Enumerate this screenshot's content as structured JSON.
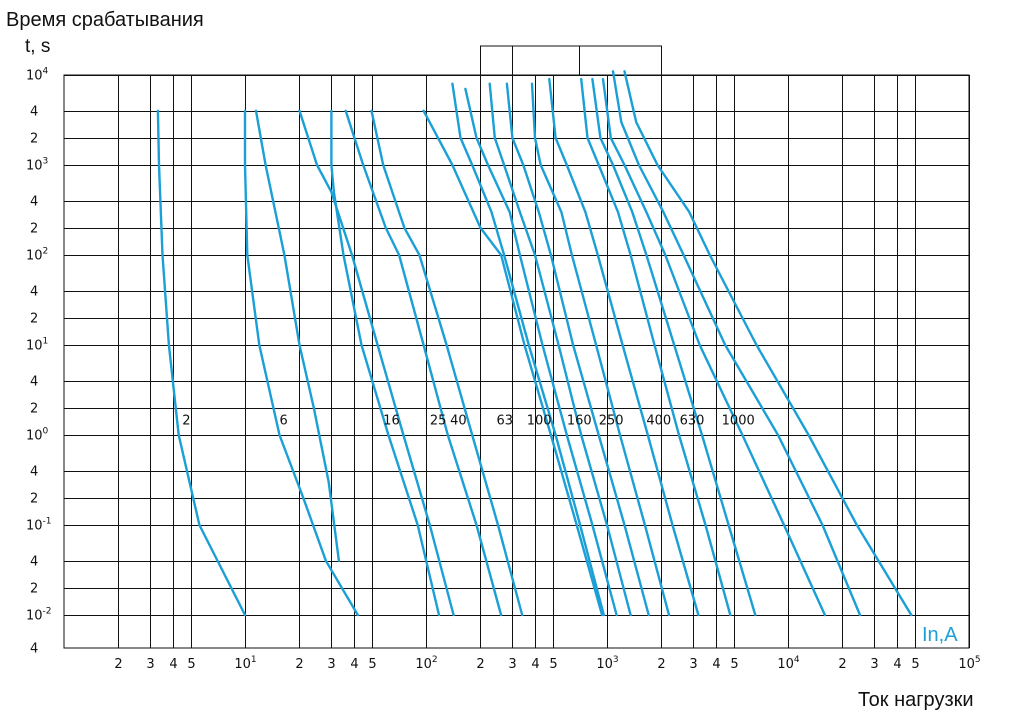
{
  "chart_data": {
    "type": "line",
    "title": "Время срабатывания",
    "ylabel": "t, s",
    "xlabel": "Ток нагрузки",
    "series_unit_label": "In,A",
    "x_scale": "log",
    "y_scale": "log",
    "xlim": [
      1,
      100000
    ],
    "ylim": [
      0.004,
      10000
    ],
    "grid": true,
    "curve_color": "#1a9fd6",
    "x_ticks": [
      {
        "value": 2,
        "base": "2",
        "exp": ""
      },
      {
        "value": 3,
        "base": "3",
        "exp": ""
      },
      {
        "value": 4,
        "base": "4",
        "exp": ""
      },
      {
        "value": 5,
        "base": "5",
        "exp": ""
      },
      {
        "value": 10,
        "base": "10",
        "exp": "1"
      },
      {
        "value": 20,
        "base": "2",
        "exp": ""
      },
      {
        "value": 30,
        "base": "3",
        "exp": ""
      },
      {
        "value": 40,
        "base": "4",
        "exp": ""
      },
      {
        "value": 50,
        "base": "5",
        "exp": ""
      },
      {
        "value": 100,
        "base": "10",
        "exp": "2"
      },
      {
        "value": 200,
        "base": "2",
        "exp": ""
      },
      {
        "value": 300,
        "base": "3",
        "exp": ""
      },
      {
        "value": 400,
        "base": "4",
        "exp": ""
      },
      {
        "value": 500,
        "base": "5",
        "exp": ""
      },
      {
        "value": 1000,
        "base": "10",
        "exp": "3"
      },
      {
        "value": 2000,
        "base": "2",
        "exp": ""
      },
      {
        "value": 3000,
        "base": "3",
        "exp": ""
      },
      {
        "value": 4000,
        "base": "4",
        "exp": ""
      },
      {
        "value": 5000,
        "base": "5",
        "exp": ""
      },
      {
        "value": 10000,
        "base": "10",
        "exp": "4"
      },
      {
        "value": 20000,
        "base": "2",
        "exp": ""
      },
      {
        "value": 30000,
        "base": "3",
        "exp": ""
      },
      {
        "value": 40000,
        "base": "4",
        "exp": ""
      },
      {
        "value": 50000,
        "base": "5",
        "exp": ""
      },
      {
        "value": 100000,
        "base": "10",
        "exp": "5"
      }
    ],
    "y_ticks": [
      {
        "value": 10000,
        "base": "10",
        "exp": "4"
      },
      {
        "value": 4000,
        "base": "4",
        "exp": ""
      },
      {
        "value": 2000,
        "base": "2",
        "exp": ""
      },
      {
        "value": 1000,
        "base": "10",
        "exp": "3"
      },
      {
        "value": 400,
        "base": "4",
        "exp": ""
      },
      {
        "value": 200,
        "base": "2",
        "exp": ""
      },
      {
        "value": 100,
        "base": "10",
        "exp": "2"
      },
      {
        "value": 40,
        "base": "4",
        "exp": ""
      },
      {
        "value": 20,
        "base": "2",
        "exp": ""
      },
      {
        "value": 10,
        "base": "10",
        "exp": "1"
      },
      {
        "value": 4,
        "base": "4",
        "exp": ""
      },
      {
        "value": 2,
        "base": "2",
        "exp": ""
      },
      {
        "value": 1,
        "base": "10",
        "exp": "0"
      },
      {
        "value": 0.4,
        "base": "4",
        "exp": ""
      },
      {
        "value": 0.2,
        "base": "2",
        "exp": ""
      },
      {
        "value": 0.1,
        "base": "10",
        "exp": "-1"
      },
      {
        "value": 0.04,
        "base": "4",
        "exp": ""
      },
      {
        "value": 0.02,
        "base": "2",
        "exp": ""
      },
      {
        "value": 0.01,
        "base": "10",
        "exp": "-2"
      },
      {
        "value": 0.004,
        "base": "4",
        "exp": ""
      }
    ],
    "series": [
      {
        "name": "2",
        "points": [
          [
            3.3,
            4000
          ],
          [
            3.35,
            1000
          ],
          [
            3.5,
            100
          ],
          [
            3.8,
            10
          ],
          [
            4.3,
            1
          ],
          [
            5.6,
            0.1
          ],
          [
            10,
            0.01
          ]
        ]
      },
      {
        "name": "6",
        "points": [
          [
            10,
            4000
          ],
          [
            10,
            1000
          ],
          [
            10.3,
            100
          ],
          [
            12,
            10
          ],
          [
            15.5,
            1
          ],
          [
            21,
            0.2
          ],
          [
            28,
            0.04
          ],
          [
            42,
            0.01
          ]
        ]
      },
      {
        "name": "6",
        "points": [
          [
            11.5,
            4000
          ],
          [
            13,
            1000
          ],
          [
            16.5,
            100
          ],
          [
            20,
            10
          ],
          [
            24,
            2
          ],
          [
            29,
            0.3
          ],
          [
            33,
            0.04
          ]
        ]
      },
      {
        "name": "16",
        "points": [
          [
            20,
            4000
          ],
          [
            25,
            1000
          ],
          [
            30,
            500
          ],
          [
            39,
            100
          ],
          [
            54,
            10
          ],
          [
            75,
            1
          ],
          [
            105,
            0.1
          ],
          [
            142,
            0.01
          ]
        ]
      },
      {
        "name": "16",
        "points": [
          [
            30,
            4000
          ],
          [
            30,
            1000
          ],
          [
            31,
            500
          ],
          [
            35,
            100
          ],
          [
            44,
            10
          ],
          [
            62,
            1
          ],
          [
            90,
            0.1
          ],
          [
            118,
            0.01
          ]
        ]
      },
      {
        "name": "25",
        "points": [
          [
            36,
            4000
          ],
          [
            45,
            1000
          ],
          [
            60,
            200
          ],
          [
            71,
            100
          ],
          [
            97,
            10
          ],
          [
            132,
            1
          ],
          [
            190,
            0.1
          ],
          [
            260,
            0.01
          ]
        ]
      },
      {
        "name": "40",
        "points": [
          [
            50,
            4000
          ],
          [
            58,
            1000
          ],
          [
            76,
            200
          ],
          [
            92,
            100
          ],
          [
            130,
            10
          ],
          [
            180,
            1
          ],
          [
            250,
            0.1
          ],
          [
            340,
            0.01
          ]
        ]
      },
      {
        "name": "63",
        "points": [
          [
            97,
            4000
          ],
          [
            140,
            1000
          ],
          [
            200,
            200
          ],
          [
            260,
            100
          ],
          [
            350,
            10
          ],
          [
            490,
            1
          ],
          [
            680,
            0.1
          ],
          [
            940,
            0.01
          ]
        ]
      },
      {
        "name": "63",
        "points": [
          [
            140,
            8000
          ],
          [
            155,
            2000
          ],
          [
            180,
            1000
          ],
          [
            230,
            300
          ],
          [
            270,
            100
          ],
          [
            370,
            10
          ],
          [
            520,
            1
          ],
          [
            710,
            0.1
          ],
          [
            960,
            0.01
          ]
        ]
      },
      {
        "name": "100",
        "points": [
          [
            165,
            7000
          ],
          [
            190,
            2000
          ],
          [
            220,
            1000
          ],
          [
            290,
            300
          ],
          [
            330,
            100
          ],
          [
            440,
            10
          ],
          [
            600,
            1
          ],
          [
            830,
            0.1
          ],
          [
            1130,
            0.01
          ]
        ]
      },
      {
        "name": "100",
        "points": [
          [
            225,
            8000
          ],
          [
            240,
            2000
          ],
          [
            270,
            1000
          ],
          [
            330,
            300
          ],
          [
            400,
            100
          ],
          [
            540,
            10
          ],
          [
            720,
            1
          ],
          [
            1000,
            0.1
          ],
          [
            1350,
            0.01
          ]
        ]
      },
      {
        "name": "160",
        "points": [
          [
            280,
            8000
          ],
          [
            300,
            2000
          ],
          [
            345,
            1000
          ],
          [
            420,
            300
          ],
          [
            490,
            100
          ],
          [
            650,
            10
          ],
          [
            900,
            1
          ],
          [
            1250,
            0.1
          ],
          [
            1700,
            0.01
          ]
        ]
      },
      {
        "name": "250",
        "points": [
          [
            385,
            8000
          ],
          [
            400,
            2000
          ],
          [
            430,
            1000
          ],
          [
            560,
            300
          ],
          [
            640,
            100
          ],
          [
            870,
            10
          ],
          [
            1180,
            1
          ],
          [
            1620,
            0.1
          ],
          [
            2200,
            0.01
          ]
        ]
      },
      {
        "name": "400",
        "points": [
          [
            480,
            9000
          ],
          [
            520,
            2000
          ],
          [
            600,
            1000
          ],
          [
            760,
            300
          ],
          [
            890,
            100
          ],
          [
            1220,
            10
          ],
          [
            1680,
            1
          ],
          [
            2300,
            0.1
          ],
          [
            3200,
            0.01
          ]
        ]
      },
      {
        "name": "630",
        "points": [
          [
            720,
            9000
          ],
          [
            780,
            2000
          ],
          [
            900,
            1000
          ],
          [
            1150,
            300
          ],
          [
            1350,
            100
          ],
          [
            1830,
            10
          ],
          [
            2500,
            1
          ],
          [
            3500,
            0.1
          ],
          [
            4800,
            0.01
          ]
        ]
      },
      {
        "name": "1000",
        "points": [
          [
            830,
            9000
          ],
          [
            920,
            2000
          ],
          [
            1080,
            1000
          ],
          [
            1380,
            300
          ],
          [
            1650,
            100
          ],
          [
            2350,
            10
          ],
          [
            3350,
            1
          ],
          [
            4700,
            0.1
          ],
          [
            6600,
            0.01
          ]
        ]
      },
      {
        "name": "1000",
        "points": [
          [
            950,
            9000
          ],
          [
            1050,
            2000
          ],
          [
            1250,
            1000
          ],
          [
            1650,
            300
          ],
          [
            2100,
            100
          ],
          [
            3250,
            10
          ],
          [
            5600,
            1
          ],
          [
            9500,
            0.1
          ],
          [
            16000,
            0.01
          ]
        ]
      },
      {
        "name": "1000",
        "points": [
          [
            1080,
            11000
          ],
          [
            1200,
            3000
          ],
          [
            1500,
            1000
          ],
          [
            2050,
            300
          ],
          [
            2650,
            100
          ],
          [
            4500,
            10
          ],
          [
            8800,
            1
          ],
          [
            15500,
            0.1
          ],
          [
            25000,
            0.01
          ]
        ]
      },
      {
        "name": "1000",
        "points": [
          [
            1250,
            11000
          ],
          [
            1450,
            3000
          ],
          [
            1900,
            1000
          ],
          [
            2850,
            300
          ],
          [
            3700,
            100
          ],
          [
            6700,
            10
          ],
          [
            13000,
            1
          ],
          [
            24000,
            0.1
          ],
          [
            48000,
            0.01
          ]
        ]
      }
    ],
    "curve_labels": [
      {
        "text": "2",
        "x": 4.5,
        "y": 1.3
      },
      {
        "text": "6",
        "x": 15.5,
        "y": 1.3
      },
      {
        "text": "16",
        "x": 58,
        "y": 1.3
      },
      {
        "text": "25",
        "x": 105,
        "y": 1.3
      },
      {
        "text": "40",
        "x": 136,
        "y": 1.3
      },
      {
        "text": "63",
        "x": 245,
        "y": 1.3
      },
      {
        "text": "100",
        "x": 360,
        "y": 1.3
      },
      {
        "text": "160",
        "x": 600,
        "y": 1.3
      },
      {
        "text": "250",
        "x": 900,
        "y": 1.3
      },
      {
        "text": "400",
        "x": 1650,
        "y": 1.3
      },
      {
        "text": "630",
        "x": 2520,
        "y": 1.3
      },
      {
        "text": "1000",
        "x": 4300,
        "y": 1.3
      }
    ]
  }
}
